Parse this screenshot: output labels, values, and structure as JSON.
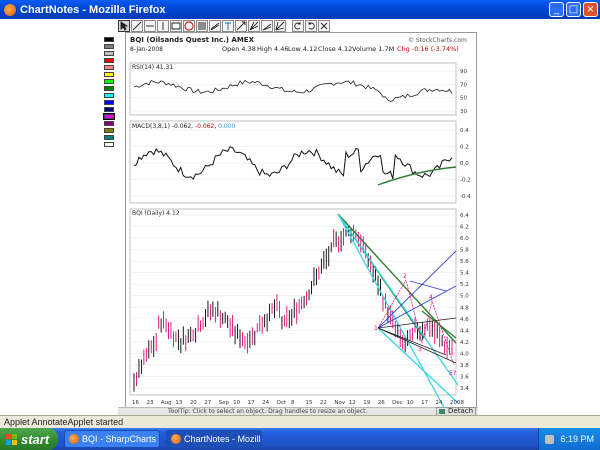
{
  "window": {
    "title": "ChartNotes - Mozilla Firefox",
    "minimize_glyph": "_",
    "maximize_glyph": "□",
    "close_glyph": "×"
  },
  "toolbar": {
    "tools": [
      "select-tool",
      "line-tool",
      "horizontal-line-tool",
      "vertical-line-tool",
      "rectangle-tool",
      "circle-tool",
      "fibonacci-tool",
      "trend-channel-tool",
      "text-tool",
      "arrow-tool",
      "pitchfork-tool",
      "speed-lines-tool",
      "gann-fan-tool",
      "undo-tool",
      "redo-tool",
      "erase-tool"
    ]
  },
  "palette": {
    "colors": [
      "#000000",
      "#7f7f7f",
      "#c0c0c0",
      "#ff0000",
      "#ff8080",
      "#ffff00",
      "#00ff00",
      "#008000",
      "#00ffff",
      "#0000ff",
      "#000080",
      "#ff00ff",
      "#800080",
      "#808000",
      "#008080",
      "#ffffff"
    ],
    "selected_index": 11
  },
  "chart": {
    "symbol_header": "BQI (Oilsands Quest Inc.) AMEX",
    "watermark": "© StockCharts.com",
    "date_label": "8-Jan-2008",
    "quote_line": {
      "open": "Open 4.38",
      "high": "High 4.46",
      "low": "Low 4.12",
      "close": "Close 4.12",
      "volume": "Volume 1.7M",
      "change": "Chg -0.16 (-3.74%)",
      "change_color": "#cc0000"
    },
    "rsi_panel": {
      "label": "RSI(14) 41.31",
      "ticks": [
        "90",
        "70",
        "50",
        "30"
      ]
    },
    "macd_panel": {
      "label": "MACD(3,8,1) -0.062, ",
      "signal_value": "-0.062",
      "signal_color": "#cc0000",
      "hist_value": "0.000",
      "hist_color": "#3399cc",
      "ticks": [
        "0.4",
        "0.2",
        "0.0",
        "-0.2",
        "-0.4"
      ]
    },
    "price_panel": {
      "label": "BQI (Daily) 4.12",
      "ticks": [
        "6.4",
        "6.2",
        "6.0",
        "5.8",
        "5.6",
        "5.4",
        "5.2",
        "5.0",
        "4.8",
        "4.6",
        "4.4",
        "4.2",
        "4.0",
        "3.8",
        "3.6",
        "3.4"
      ]
    },
    "x_labels": [
      "16",
      "23",
      "Aug",
      "13",
      "20",
      "27",
      "Sep",
      "10",
      "17",
      "24",
      "Oct",
      "8",
      "15",
      "22",
      "Nov",
      "12",
      "19",
      "26",
      "Dec",
      "10",
      "17",
      "24",
      "2008"
    ],
    "wave_labels": [
      "1",
      "2",
      "3",
      "4",
      "5?"
    ],
    "colors": {
      "up_bar": "#000000",
      "down_bar": "#e0007a",
      "channel_green": "#2e7d2e",
      "fan_cyan": "#38d6e8",
      "fan_blue": "#2f3fe0",
      "wave_magenta": "#e0007a"
    }
  },
  "tipbar": {
    "text": "ToolTip: Click to select an object. Drag handles to resize an object.",
    "detach_label": "Detach"
  },
  "status": {
    "text": "Applet AnnotateApplet started"
  },
  "taskbar": {
    "start_label": "start",
    "tasks": [
      {
        "label": "BQI - SharpCharts fr..."
      },
      {
        "label": "ChartNotes - Mozilla ..."
      }
    ],
    "clock": "6:19 PM"
  }
}
